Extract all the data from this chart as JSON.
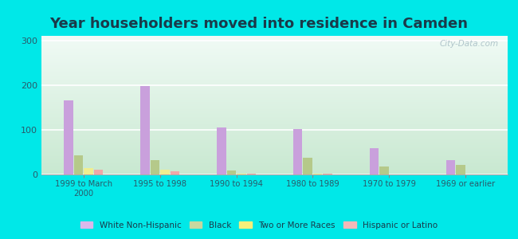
{
  "title": "Year householders moved into residence in Camden",
  "categories": [
    "1999 to March\n2000",
    "1995 to 1998",
    "1990 to 1994",
    "1980 to 1989",
    "1970 to 1979",
    "1969 or earlier"
  ],
  "series": {
    "White Non-Hispanic": [
      165,
      197,
      105,
      102,
      58,
      32
    ],
    "Black": [
      43,
      32,
      9,
      38,
      18,
      22
    ],
    "Two or More Races": [
      14,
      10,
      2,
      2,
      0,
      0
    ],
    "Hispanic or Latino": [
      10,
      8,
      1,
      1,
      0,
      0
    ]
  },
  "colors": {
    "White Non-Hispanic": "#c9a0dc",
    "Black": "#b5c98a",
    "Two or More Races": "#f0ee90",
    "Hispanic or Latino": "#f0a8a8"
  },
  "legend_colors": {
    "White Non-Hispanic": "#dbb8eb",
    "Black": "#c8d8a0",
    "Two or More Races": "#f5f07a",
    "Hispanic or Latino": "#f5b8b8"
  },
  "ylim": [
    0,
    310
  ],
  "yticks": [
    0,
    100,
    200,
    300
  ],
  "background_outer": "#00e8e8",
  "watermark": "City-Data.com",
  "bar_width": 0.13,
  "title_fontsize": 13
}
